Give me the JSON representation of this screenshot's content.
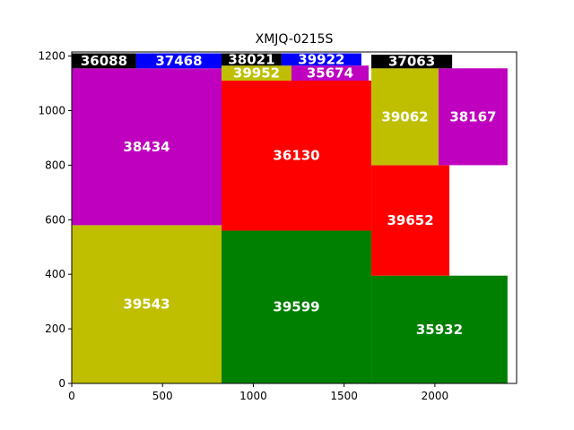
{
  "chart_data": {
    "type": "rect-layout",
    "title": "XMJQ-0215S",
    "xlabel": "",
    "ylabel": "",
    "xlim": [
      0,
      2450
    ],
    "ylim": [
      0,
      1215
    ],
    "xticks": [
      0,
      500,
      1000,
      1500,
      2000
    ],
    "yticks": [
      0,
      200,
      400,
      600,
      800,
      1000,
      1200
    ],
    "grid": false,
    "rects": [
      {
        "label": "39543",
        "x": 0,
        "y": 0,
        "w": 825,
        "h": 580,
        "color": "#bfbf00"
      },
      {
        "label": "38434",
        "x": 0,
        "y": 580,
        "w": 825,
        "h": 575,
        "color": "#bf00bf"
      },
      {
        "label": "36088",
        "x": 0,
        "y": 1155,
        "w": 355,
        "h": 55,
        "color": "#000000"
      },
      {
        "label": "37468",
        "x": 355,
        "y": 1155,
        "w": 470,
        "h": 55,
        "color": "#0000ff"
      },
      {
        "label": "39599",
        "x": 825,
        "y": 0,
        "w": 825,
        "h": 560,
        "color": "#008000"
      },
      {
        "label": "36130",
        "x": 825,
        "y": 560,
        "w": 825,
        "h": 550,
        "color": "#ff0000"
      },
      {
        "label": "39952",
        "x": 825,
        "y": 1110,
        "w": 385,
        "h": 55,
        "color": "#bfbf00"
      },
      {
        "label": "35674",
        "x": 1210,
        "y": 1110,
        "w": 425,
        "h": 55,
        "color": "#bf00bf"
      },
      {
        "label": "38021",
        "x": 825,
        "y": 1165,
        "w": 330,
        "h": 45,
        "color": "#000000"
      },
      {
        "label": "39922",
        "x": 1155,
        "y": 1165,
        "w": 440,
        "h": 45,
        "color": "#0000ff"
      },
      {
        "label": "35932",
        "x": 1650,
        "y": 0,
        "w": 750,
        "h": 395,
        "color": "#008000"
      },
      {
        "label": "39652",
        "x": 1650,
        "y": 395,
        "w": 430,
        "h": 405,
        "color": "#ff0000"
      },
      {
        "label": "39062",
        "x": 1650,
        "y": 800,
        "w": 370,
        "h": 355,
        "color": "#bfbf00"
      },
      {
        "label": "38167",
        "x": 2020,
        "y": 800,
        "w": 380,
        "h": 355,
        "color": "#bf00bf"
      },
      {
        "label": "37063",
        "x": 1650,
        "y": 1155,
        "w": 445,
        "h": 50,
        "color": "#000000"
      }
    ]
  }
}
